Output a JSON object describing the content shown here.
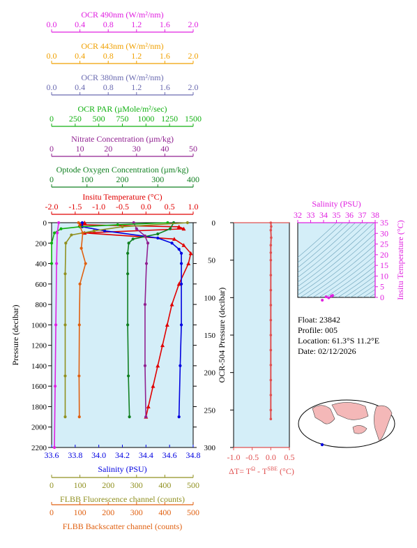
{
  "chart_data": [
    {
      "type": "line",
      "title": "",
      "ylabel": "Pressure (decibar)",
      "ylim": [
        2200,
        0
      ],
      "y_ticks": [
        "0",
        "200",
        "400",
        "600",
        "800",
        "1000",
        "1200",
        "1400",
        "1600",
        "1800",
        "2000",
        "2200"
      ],
      "background": "#d4eef8",
      "top_axes": [
        {
          "label": "OCR 490nm (W/m²/nm)",
          "color": "#e020e0",
          "range": [
            0.0,
            2.0
          ],
          "ticks": [
            "0.0",
            "0.4",
            "0.8",
            "1.2",
            "1.6",
            "2.0"
          ]
        },
        {
          "label": "OCR 443nm (W/m²/nm)",
          "color": "#f0a000",
          "range": [
            0.0,
            2.0
          ],
          "ticks": [
            "0.0",
            "0.4",
            "0.8",
            "1.2",
            "1.6",
            "2.0"
          ]
        },
        {
          "label": "OCR 380nm (W/m²/nm)",
          "color": "#6a6ab0",
          "range": [
            0.0,
            2.0
          ],
          "ticks": [
            "0.0",
            "0.4",
            "0.8",
            "1.2",
            "1.6",
            "2.0"
          ]
        },
        {
          "label": "OCR PAR (µMole/m²/sec)",
          "color": "#10b010",
          "range": [
            0,
            1500
          ],
          "ticks": [
            "0",
            "250",
            "500",
            "750",
            "1000",
            "1250",
            "1500"
          ]
        },
        {
          "label": "Nitrate Concentration (µm/kg)",
          "color": "#902090",
          "range": [
            0,
            50
          ],
          "ticks": [
            "0",
            "10",
            "20",
            "30",
            "40",
            "50"
          ]
        },
        {
          "label": "Optode Oxygen Concentration (µm/kg)",
          "color": "#108020",
          "range": [
            0,
            400
          ],
          "ticks": [
            "0",
            "100",
            "200",
            "300",
            "400"
          ]
        },
        {
          "label": "Insitu Temperature (°C)",
          "color": "#e00000",
          "range": [
            -2.0,
            1.0
          ],
          "ticks": [
            "-2.0",
            "-1.5",
            "-1.0",
            "-0.5",
            "0.0",
            "0.5",
            "1.0"
          ]
        }
      ],
      "bottom_axes": [
        {
          "label": "Salinity (PSU)",
          "color": "#0000e0",
          "range": [
            33.6,
            34.8
          ],
          "ticks": [
            "33.6",
            "33.8",
            "34.0",
            "34.2",
            "34.4",
            "34.6",
            "34.8"
          ]
        },
        {
          "label": "FLBB Fluorescence channel (counts)",
          "color": "#909020",
          "range": [
            0,
            500
          ],
          "ticks": [
            "0",
            "100",
            "200",
            "300",
            "400",
            "500"
          ]
        },
        {
          "label": "FLBB Backscatter channel (counts)",
          "color": "#e06010",
          "range": [
            0,
            500
          ],
          "ticks": [
            "0",
            "100",
            "200",
            "300",
            "400",
            "500"
          ]
        }
      ],
      "series": [
        {
          "name": "Insitu Temperature (°C)",
          "color": "#e00000",
          "axis": 6,
          "marker": "triangle",
          "points": [
            [
              -1.3,
              0
            ],
            [
              -1.4,
              20
            ],
            [
              0.7,
              40
            ],
            [
              0.8,
              60
            ],
            [
              -1.3,
              100
            ],
            [
              0.6,
              160
            ],
            [
              0.8,
              220
            ],
            [
              0.95,
              300
            ],
            [
              0.9,
              400
            ],
            [
              0.7,
              600
            ],
            [
              0.55,
              800
            ],
            [
              0.45,
              1000
            ],
            [
              0.35,
              1200
            ],
            [
              0.25,
              1400
            ],
            [
              0.15,
              1600
            ],
            [
              0.05,
              1800
            ],
            [
              0.0,
              1900
            ]
          ]
        },
        {
          "name": "Salinity (PSU)",
          "color": "#0000e0",
          "axis": 7,
          "marker": "circle",
          "points": [
            [
              33.86,
              0
            ],
            [
              33.86,
              40
            ],
            [
              34.05,
              80
            ],
            [
              34.5,
              150
            ],
            [
              34.62,
              200
            ],
            [
              34.68,
              260
            ],
            [
              34.7,
              300
            ],
            [
              34.7,
              400
            ],
            [
              34.7,
              600
            ],
            [
              34.7,
              1000
            ],
            [
              34.69,
              1400
            ],
            [
              34.68,
              1900
            ]
          ]
        },
        {
          "name": "Optode Oxygen Concentration (µm/kg)",
          "color": "#108020",
          "axis": 5,
          "marker": "circle",
          "points": [
            [
              345,
              0
            ],
            [
              335,
              60
            ],
            [
              300,
              110
            ],
            [
              230,
              160
            ],
            [
              218,
              200
            ],
            [
              215,
              300
            ],
            [
              215,
              500
            ],
            [
              215,
              1000
            ],
            [
              217,
              1500
            ],
            [
              220,
              1900
            ]
          ]
        },
        {
          "name": "Nitrate Concentration (µm/kg)",
          "color": "#902090",
          "axis": 4,
          "marker": "circle",
          "points": [
            [
              29,
              0
            ],
            [
              30,
              60
            ],
            [
              33,
              130
            ],
            [
              34,
              200
            ],
            [
              33.5,
              400
            ],
            [
              33,
              800
            ],
            [
              33,
              1400
            ],
            [
              33.3,
              1900
            ]
          ]
        },
        {
          "name": "OCR PAR (µMole/m²/sec)",
          "color": "#10b010",
          "axis": 3,
          "marker": "circle",
          "points": [
            [
              1230,
              0
            ],
            [
              700,
              20
            ],
            [
              300,
              40
            ],
            [
              100,
              60
            ],
            [
              30,
              100
            ],
            [
              0,
              200
            ],
            [
              0,
              400
            ]
          ]
        },
        {
          "name": "OCR 490nm (W/m²/nm)",
          "color": "#e020e0",
          "axis": 0,
          "marker": "circle",
          "points": [
            [
              0.1,
              0
            ],
            [
              0.08,
              100
            ],
            [
              0.07,
              400
            ],
            [
              0.06,
              1000
            ],
            [
              0.05,
              1600
            ],
            [
              0.04,
              2200
            ]
          ]
        },
        {
          "name": "FLBB Fluorescence channel (counts)",
          "color": "#909020",
          "axis": 8,
          "marker": "circle",
          "points": [
            [
              480,
              0
            ],
            [
              250,
              40
            ],
            [
              150,
              80
            ],
            [
              70,
              120
            ],
            [
              50,
              200
            ],
            [
              48,
              500
            ],
            [
              48,
              1000
            ],
            [
              48,
              1500
            ],
            [
              48,
              1900
            ]
          ]
        },
        {
          "name": "FLBB Backscatter channel (counts)",
          "color": "#e06010",
          "axis": 9,
          "marker": "circle",
          "points": [
            [
              95,
              0
            ],
            [
              110,
              100
            ],
            [
              105,
              250
            ],
            [
              120,
              400
            ],
            [
              100,
              600
            ],
            [
              98,
              1000
            ],
            [
              97,
              1500
            ],
            [
              98,
              1900
            ]
          ]
        }
      ]
    },
    {
      "type": "scatter",
      "title": "",
      "ylabel": "OCR-504 Pressure (decibar)",
      "xlabel": "ΔT= T",
      "xlabel_sup1": "Ω",
      "xlabel_mid": " - T",
      "xlabel_sup2": "SBE",
      "xlabel_end": " (°C)",
      "xlim": [
        -1.0,
        0.5
      ],
      "ylim": [
        300,
        0
      ],
      "x_ticks": [
        "-1.0",
        "-0.5",
        "0.0",
        "0.5"
      ],
      "y_ticks": [
        "0",
        "50",
        "100",
        "150",
        "200",
        "250",
        "300"
      ],
      "color": "#e05050",
      "points": [
        [
          0.0,
          0
        ],
        [
          0.01,
          5
        ],
        [
          0.0,
          10
        ],
        [
          0.01,
          20
        ],
        [
          0.0,
          30
        ],
        [
          0.0,
          40
        ],
        [
          0.0,
          50
        ],
        [
          0.0,
          70
        ],
        [
          0.0,
          90
        ],
        [
          0.0,
          110
        ],
        [
          0.0,
          130
        ],
        [
          0.0,
          150
        ],
        [
          0.0,
          170
        ],
        [
          0.0,
          190
        ],
        [
          0.0,
          210
        ],
        [
          0.0,
          230
        ],
        [
          0.0,
          250
        ],
        [
          0.0,
          262
        ]
      ]
    },
    {
      "type": "scatter",
      "title": "",
      "xlabel": "Salinity (PSU)",
      "ylabel": "Insitu Temperature (°C)",
      "xlim": [
        32,
        38
      ],
      "ylim": [
        0,
        35
      ],
      "x_ticks": [
        "32",
        "33",
        "34",
        "35",
        "36",
        "37",
        "38"
      ],
      "y_ticks": [
        "0",
        "5",
        "10",
        "15",
        "20",
        "25",
        "30",
        "35"
      ],
      "color": "#e020e0",
      "points": [
        [
          34.6,
          0.6
        ],
        [
          34.7,
          0.9
        ],
        [
          34.4,
          -0.2
        ],
        [
          33.9,
          -1.3
        ],
        [
          34.2,
          0.3
        ]
      ]
    }
  ],
  "float_info": {
    "float": "Float:  23842",
    "profile": "Profile:  005",
    "location": "Location:  61.3°S  11.2°E",
    "date": "Date:  02/12/2026"
  }
}
